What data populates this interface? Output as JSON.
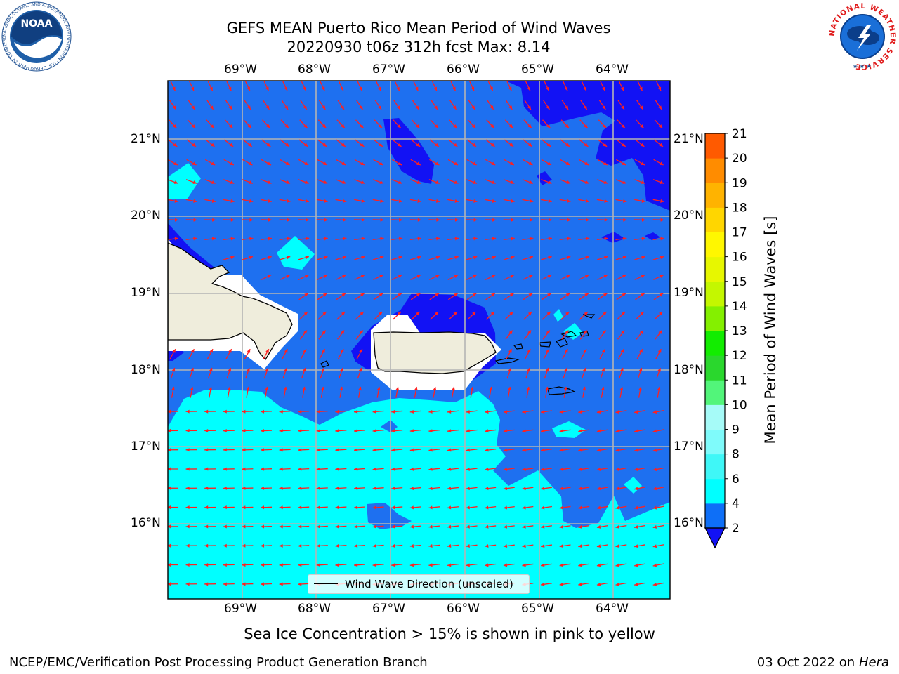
{
  "header": {
    "title_line1": "GEFS MEAN Puerto Rico Mean Period of Wind Waves",
    "title_line2": "20220930 t06z 312h fcst   Max: 8.14"
  },
  "logos": {
    "noaa_text": "NOAA",
    "noaa_ring": "NATIONAL OCEANIC AND ATMOSPHERIC ADMINISTRATION · U.S. DEPARTMENT OF COMMERCE",
    "nws_ring": "NATIONAL WEATHER SERVICE"
  },
  "axes": {
    "lon_labels": [
      "69°W",
      "68°W",
      "67°W",
      "66°W",
      "65°W",
      "64°W"
    ],
    "lat_labels": [
      "21°N",
      "20°N",
      "19°N",
      "18°N",
      "17°N",
      "16°N"
    ]
  },
  "legend": {
    "label": "Wind Wave Direction (unscaled)"
  },
  "colorbar": {
    "label": "Mean Period of Wind Waves [s]",
    "ticks": [
      "2",
      "4",
      "6",
      "8",
      "9",
      "10",
      "11",
      "12",
      "13",
      "14",
      "15",
      "16",
      "17",
      "18",
      "19",
      "20",
      "21"
    ],
    "colors": [
      "#0e6ff7",
      "#00ffff",
      "#3ff7f7",
      "#7ffbfb",
      "#a6fbf8",
      "#52f57a",
      "#2ad72d",
      "#12ed00",
      "#84f000",
      "#c4f700",
      "#e7f700",
      "#fff700",
      "#ffd600",
      "#ffb300",
      "#ff8c00",
      "#ff5a00",
      "#ff2a00",
      "#ff0000"
    ],
    "under_color": "#1212f4"
  },
  "colors": {
    "ocean_band": "#1e70f0",
    "low_band": "#1212f4",
    "high_band": "#00ffff",
    "mid_band": "#3ff8f8",
    "land": "#efeddc",
    "arrow": "#ff2020"
  },
  "caption": "Sea Ice Concentration > 15% is shown in pink to yellow",
  "footer": {
    "left": "NCEP/EMC/Verification Post Processing Product Generation Branch",
    "right_prefix": "03 Oct 2022 on ",
    "right_host": "Hera"
  }
}
